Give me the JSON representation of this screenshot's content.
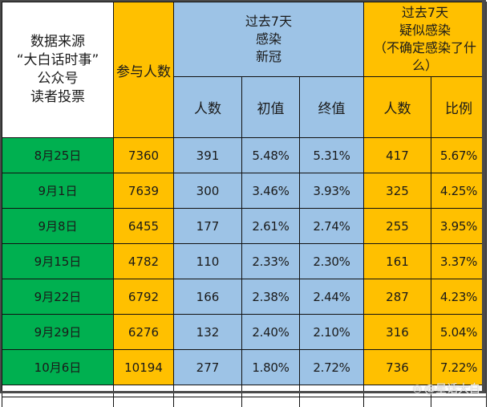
{
  "header": {
    "source_lines": [
      "数据来源",
      "“大白话时事”",
      "公众号",
      "读者投票"
    ],
    "participants_label": "参与人数",
    "infected_group_lines": [
      "过去7天",
      "感染",
      "新冠"
    ],
    "suspected_group_lines": [
      "过去7天",
      "疑似感染",
      "（不确定感染了什",
      "么）"
    ],
    "infected_subheaders": [
      "人数",
      "初值",
      "终值"
    ],
    "suspected_subheaders": [
      "人数",
      "比例"
    ]
  },
  "colors": {
    "date_bg": "#00b050",
    "participants_bg": "#ffc000",
    "infected_bg": "#9dc3e6",
    "suspected_bg": "#ffc000"
  },
  "rows": [
    {
      "date": "8月25日",
      "participants": "7360",
      "infected_count": "391",
      "initial": "5.48%",
      "final": "5.31%",
      "suspected_count": "417",
      "suspected_ratio": "5.67%"
    },
    {
      "date": "9月1日",
      "participants": "7639",
      "infected_count": "300",
      "initial": "3.46%",
      "final": "3.93%",
      "suspected_count": "325",
      "suspected_ratio": "4.25%"
    },
    {
      "date": "9月8日",
      "participants": "6455",
      "infected_count": "177",
      "initial": "2.61%",
      "final": "2.74%",
      "suspected_count": "255",
      "suspected_ratio": "3.95%"
    },
    {
      "date": "9月15日",
      "participants": "4782",
      "infected_count": "110",
      "initial": "2.33%",
      "final": "2.30%",
      "suspected_count": "161",
      "suspected_ratio": "3.37%"
    },
    {
      "date": "9月22日",
      "participants": "6792",
      "infected_count": "166",
      "initial": "2.38%",
      "final": "2.44%",
      "suspected_count": "287",
      "suspected_ratio": "4.23%"
    },
    {
      "date": "9月29日",
      "participants": "6276",
      "infected_count": "132",
      "initial": "2.40%",
      "final": "2.10%",
      "suspected_count": "316",
      "suspected_ratio": "5.04%"
    },
    {
      "date": "10月6日",
      "participants": "10194",
      "infected_count": "277",
      "initial": "1.80%",
      "final": "2.72%",
      "suspected_count": "736",
      "suspected_ratio": "7.22%"
    }
  ],
  "watermark": {
    "icon": "weibo-icon",
    "text": "@星话大白"
  }
}
